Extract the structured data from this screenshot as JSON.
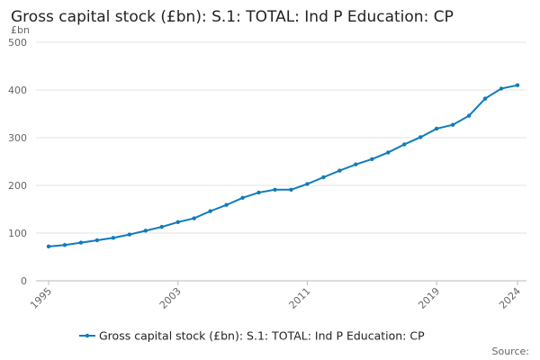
{
  "chart_data": {
    "type": "line",
    "title": "Gross capital stock (£bn): S.1: TOTAL: Ind P Education: CP",
    "y_unit": "£bn",
    "source_label": "Source:",
    "x": [
      1995,
      1996,
      1997,
      1998,
      1999,
      2000,
      2001,
      2002,
      2003,
      2004,
      2005,
      2006,
      2007,
      2008,
      2009,
      2010,
      2011,
      2012,
      2013,
      2014,
      2015,
      2016,
      2017,
      2018,
      2019,
      2020,
      2021,
      2022,
      2023,
      2024
    ],
    "series": [
      {
        "name": "Gross capital stock (£bn): S.1: TOTAL: Ind P Education: CP",
        "color": "#0f7bbd",
        "values": [
          72,
          75,
          80,
          85,
          90,
          97,
          105,
          113,
          123,
          131,
          146,
          159,
          174,
          185,
          191,
          191,
          203,
          217,
          231,
          244,
          255,
          269,
          286,
          301,
          319,
          327,
          346,
          382,
          403,
          410
        ]
      }
    ],
    "xlim": [
      1995,
      2024
    ],
    "xticks": [
      1995,
      2003,
      2011,
      2019,
      2024
    ],
    "ylim": [
      0,
      500
    ],
    "yticks": [
      0,
      100,
      200,
      300,
      400,
      500
    ],
    "grid": true
  }
}
